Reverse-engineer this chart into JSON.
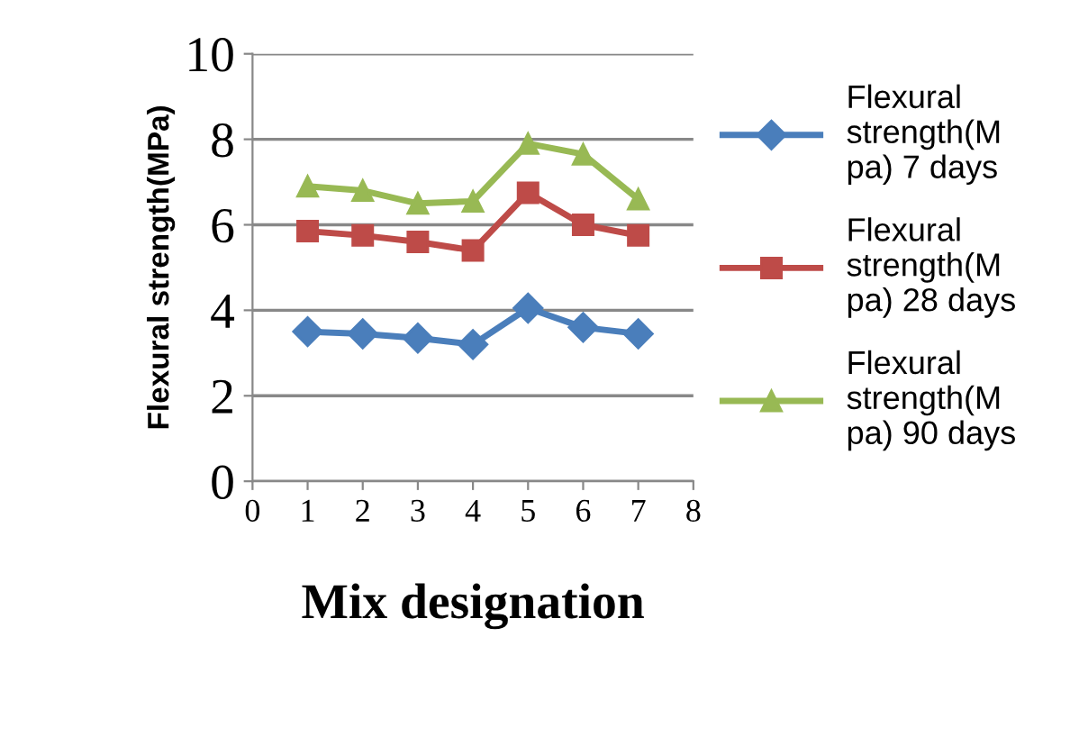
{
  "chart_data": {
    "type": "line",
    "xlabel": "Mix designation",
    "ylabel": "Flexural strength(MPa)",
    "x": [
      1,
      2,
      3,
      4,
      5,
      6,
      7
    ],
    "series": [
      {
        "name": "Flexural strength(M pa) 7 days",
        "color": "#4a7ebb",
        "marker": "diamond",
        "values": [
          3.5,
          3.45,
          3.35,
          3.2,
          4.05,
          3.6,
          3.45
        ]
      },
      {
        "name": "Flexural strength(M pa) 28 days",
        "color": "#be4b48",
        "marker": "square",
        "values": [
          5.85,
          5.75,
          5.6,
          5.4,
          6.75,
          6.0,
          5.75
        ]
      },
      {
        "name": "Flexural strength(M pa) 90 days",
        "color": "#98b954",
        "marker": "triangle",
        "values": [
          6.9,
          6.8,
          6.5,
          6.55,
          7.9,
          7.65,
          6.6
        ]
      }
    ],
    "xlim": [
      0,
      8
    ],
    "xticks": [
      0,
      1,
      2,
      3,
      4,
      5,
      6,
      7,
      8
    ],
    "ylim": [
      0,
      10
    ],
    "yticks": [
      0,
      2,
      4,
      6,
      8,
      10
    ],
    "grid": "y",
    "legend": "right",
    "line_style": "solid"
  }
}
